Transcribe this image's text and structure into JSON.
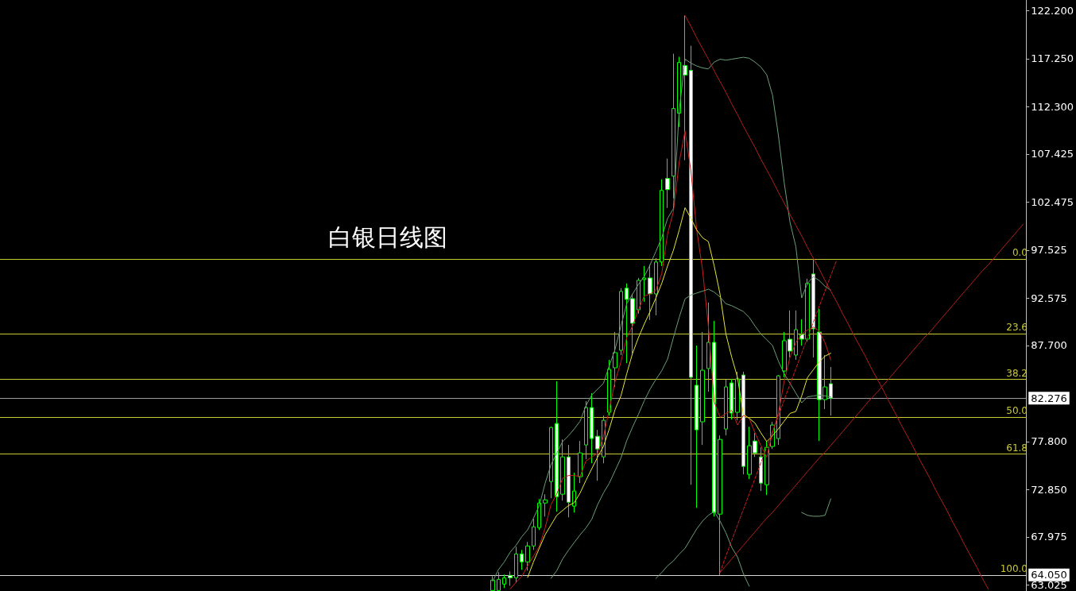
{
  "chart_data": {
    "type": "candlestick",
    "title": "白银日线图",
    "color": "#00ff00",
    "categories": [
      null,
      null,
      null,
      null,
      null,
      null,
      null,
      null,
      null,
      null,
      null,
      null,
      null,
      null,
      null,
      null,
      null,
      null,
      null,
      null,
      null,
      null,
      null,
      null,
      null,
      null,
      null,
      null,
      null,
      null,
      null,
      null,
      null,
      null,
      null,
      null,
      null,
      null,
      null,
      null,
      null,
      null,
      null,
      null,
      null,
      null,
      null,
      null,
      null,
      null,
      null,
      null,
      null,
      null,
      null,
      null,
      null,
      null,
      null,
      null,
      null,
      null,
      null,
      null,
      null,
      null,
      null,
      null,
      null,
      null,
      null,
      null,
      null,
      null,
      null,
      null,
      null,
      null,
      null,
      null,
      null,
      null,
      null,
      null,
      null,
      null,
      null,
      null,
      null,
      null,
      null,
      null,
      null,
      null,
      null,
      null,
      null,
      null,
      null,
      null,
      null,
      null,
      null,
      null,
      null,
      null,
      null,
      null,
      null,
      null,
      null,
      null,
      null,
      null,
      null,
      null,
      null,
      null,
      null,
      null,
      null,
      null,
      null,
      null,
      null,
      null,
      null,
      null,
      null,
      null,
      null,
      null,
      null,
      null,
      null,
      null,
      null,
      null,
      null,
      null,
      null,
      null,
      null,
      null,
      null,
      null,
      null,
      null,
      null,
      null,
      null,
      null,
      null,
      null,
      null,
      null,
      null,
      null,
      null,
      null,
      null,
      null,
      null,
      null,
      null,
      null,
      null,
      null,
      null,
      null,
      null,
      null,
      null,
      null,
      null,
      null
    ],
    "ohlc": [
      null,
      null,
      null,
      null,
      null,
      null,
      null,
      null,
      null,
      null,
      null,
      null,
      null,
      null,
      null,
      null,
      null,
      null,
      null,
      null,
      null,
      null,
      null,
      null,
      null,
      null,
      null,
      null,
      null,
      null,
      null,
      null,
      null,
      null,
      null,
      null,
      null,
      null,
      null,
      null,
      null,
      null,
      null,
      null,
      null,
      null,
      null,
      null,
      null,
      null,
      null,
      null,
      null,
      null,
      null,
      null,
      null,
      null,
      null,
      null,
      null,
      null,
      null,
      null,
      null,
      null,
      null,
      null,
      null,
      null,
      null,
      null,
      null,
      null,
      null,
      null,
      null,
      null,
      null,
      null,
      null,
      null,
      null,
      null,
      [
        62.45,
        63.93,
        62.45,
        63.52
      ],
      [
        62.45,
        64.34,
        62.45,
        63.6
      ],
      [
        63.11,
        64.09,
        62.7,
        63.76
      ],
      [
        64.01,
        64.42,
        62.94,
        63.76
      ],
      [
        63.76,
        66.96,
        63.27,
        66.22
      ],
      [
        66.22,
        66.63,
        64.58,
        65.4
      ],
      [
        65.4,
        67.45,
        64.5,
        67.04
      ],
      [
        67.04,
        69.83,
        66.63,
        69.01
      ],
      [
        68.93,
        71.88,
        68.68,
        71.47
      ],
      [
        71.47,
        72.37,
        70.07,
        71.79
      ],
      [
        73.68,
        79.33,
        71.96,
        79.25
      ],
      [
        79.66,
        84.01,
        70.57,
        72.12
      ],
      [
        72.37,
        78.02,
        71.71,
        76.22
      ],
      [
        76.22,
        77.45,
        69.99,
        71.55
      ],
      [
        71.14,
        74.58,
        70.48,
        72.7
      ],
      [
        74.17,
        77.86,
        73.52,
        76.63
      ],
      [
        77.45,
        81.96,
        75.98,
        81.3
      ],
      [
        81.3,
        82.78,
        75.56,
        78.11
      ],
      [
        78.35,
        79.01,
        73.76,
        77.04
      ],
      [
        76.22,
        80.48,
        75.56,
        79.99
      ],
      [
        80.81,
        86.22,
        80.48,
        85.24
      ],
      [
        85.4,
        89.09,
        83.43,
        86.96
      ],
      [
        87.2,
        93.6,
        86.71,
        93.27
      ],
      [
        93.6,
        94.09,
        85.89,
        92.45
      ],
      [
        92.53,
        93.02,
        86.88,
        89.99
      ],
      [
        91.38,
        94.66,
        90.97,
        94.42
      ],
      [
        94.5,
        95.89,
        92.2,
        94.66
      ],
      [
        94.66,
        96.05,
        90.32,
        93.02
      ],
      [
        93.02,
        96.71,
        90.81,
        96.3
      ],
      [
        96.3,
        104.82,
        95.89,
        103.68
      ],
      [
        104.91,
        106.96,
        101.87,
        103.76
      ],
      [
        105.15,
        117.77,
        102.86,
        112.12
      ],
      [
        111.63,
        117.45,
        110.23,
        116.87
      ],
      [
        116.54,
        121.71,
        106.79,
        115.56
      ],
      [
        116.05,
        118.59,
        73.35,
        84.42
      ],
      [
        83.6,
        87.69,
        70.97,
        79.01
      ],
      [
        79.83,
        89.09,
        77.45,
        85.15
      ],
      [
        85.32,
        92.12,
        82.94,
        88.02
      ],
      [
        88.02,
        90.24,
        70.07,
        70.48
      ],
      [
        70.32,
        78.43,
        64.05,
        78.02
      ],
      [
        79.09,
        84.17,
        78.43,
        83.43
      ],
      [
        83.84,
        84.25,
        80.07,
        80.73
      ],
      [
        80.81,
        84.99,
        79.99,
        84.25
      ],
      [
        84.66,
        84.99,
        74.42,
        75.24
      ],
      [
        74.42,
        79.33,
        73.93,
        77.37
      ],
      [
        77.86,
        78.68,
        76.22,
        76.63
      ],
      [
        76.22,
        77.2,
        72.7,
        73.52
      ],
      [
        73.35,
        77.86,
        72.29,
        77.2
      ],
      [
        77.29,
        79.83,
        77.04,
        79.5
      ],
      [
        78.11,
        84.66,
        77.45,
        84.58
      ],
      [
        85.07,
        89.09,
        84.42,
        88.19
      ],
      [
        88.35,
        91.3,
        86.47,
        87.12
      ],
      [
        86.71,
        91.3,
        86.22,
        89.33
      ],
      [
        88.84,
        90.4,
        87.69,
        88.35
      ],
      [
        88.35,
        94.58,
        88.1,
        94.09
      ],
      [
        95.07,
        96.63,
        86.47,
        89.42
      ],
      [
        89.09,
        91.46,
        77.86,
        82.12
      ],
      [
        82.12,
        86.71,
        81.14,
        83.43
      ],
      [
        83.76,
        85.48,
        80.48,
        82.276
      ],
      null,
      null,
      null,
      null,
      null,
      null,
      null,
      null,
      null,
      null,
      null,
      null,
      null,
      null,
      null,
      null,
      null,
      null,
      null,
      null,
      null,
      null,
      null,
      null,
      null,
      null,
      null,
      null,
      null,
      null,
      null,
      null,
      null
    ],
    "series": [
      {
        "type": "line",
        "color": "#c81e1e",
        "values": [
          null,
          null,
          null,
          null,
          null,
          null,
          null,
          null,
          null,
          null,
          null,
          null,
          null,
          null,
          null,
          null,
          null,
          null,
          null,
          null,
          null,
          null,
          null,
          null,
          null,
          null,
          null,
          null,
          null,
          null,
          null,
          null,
          null,
          null,
          null,
          null,
          null,
          null,
          null,
          null,
          null,
          null,
          null,
          null,
          null,
          null,
          null,
          null,
          null,
          null,
          null,
          null,
          null,
          null,
          null,
          null,
          null,
          null,
          null,
          null,
          null,
          null,
          null,
          null,
          null,
          null,
          null,
          null,
          null,
          null,
          null,
          null,
          null,
          null,
          null,
          null,
          null,
          null,
          null,
          null,
          null,
          null,
          null,
          null,
          null,
          null,
          null,
          62.6,
          63.3,
          63.9,
          65.0,
          66.0,
          67.0,
          68.9,
          71.3,
          72.4,
          74.0,
          74.3,
          74.3,
          74.2,
          75.8,
          76.2,
          76.6,
          78.3,
          81.1,
          84.0,
          86.0,
          88.5,
          89.7,
          91.4,
          92.8,
          93.0,
          93.4,
          95.1,
          99.2,
          101.5,
          106.6,
          109.8,
          105.7,
          99.6,
          95.5,
          89.7,
          81.9,
          80.3,
          80.7,
          81.0,
          79.5,
          80.5,
          80.2,
          78.7,
          77.4,
          76.2,
          78.7,
          80.7,
          84.0,
          86.5,
          88.0,
          88.9,
          89.3,
          89.6,
          89.2,
          88.0,
          86.2,
          null,
          null,
          null,
          null,
          null,
          null,
          null,
          null,
          null,
          null,
          null,
          null,
          null,
          null,
          null,
          null,
          null,
          null,
          null,
          null,
          null,
          null,
          null,
          null,
          null,
          null,
          null,
          null,
          null,
          null,
          null,
          null,
          null
        ]
      },
      {
        "type": "line",
        "color": "#e6e632",
        "values": [
          null,
          null,
          null,
          null,
          null,
          null,
          null,
          null,
          null,
          null,
          null,
          null,
          null,
          null,
          null,
          null,
          null,
          null,
          null,
          null,
          null,
          null,
          null,
          null,
          null,
          null,
          null,
          null,
          null,
          null,
          null,
          null,
          null,
          null,
          null,
          null,
          null,
          null,
          null,
          null,
          null,
          null,
          null,
          null,
          null,
          null,
          null,
          null,
          null,
          null,
          null,
          null,
          null,
          null,
          null,
          null,
          null,
          null,
          null,
          null,
          null,
          null,
          null,
          null,
          null,
          null,
          null,
          null,
          null,
          null,
          null,
          null,
          null,
          null,
          null,
          null,
          null,
          null,
          null,
          null,
          null,
          null,
          null,
          null,
          null,
          null,
          null,
          null,
          null,
          null,
          63.8,
          65.4,
          66.8,
          68.2,
          69.2,
          70.2,
          70.7,
          71.2,
          71.5,
          72.5,
          73.8,
          75.0,
          76.2,
          77.3,
          79.1,
          81.1,
          82.5,
          84.8,
          86.9,
          88.5,
          89.9,
          91.2,
          92.6,
          94.1,
          95.9,
          97.5,
          99.6,
          101.9,
          100.8,
          99.6,
          98.8,
          98.4,
          95.9,
          93.0,
          88.9,
          86.5,
          84.4,
          80.6,
          80.2,
          79.7,
          78.7,
          77.8,
          78.4,
          79.1,
          79.9,
          80.7,
          80.9,
          82.5,
          84.4,
          85.2,
          86.0,
          86.6,
          86.9,
          null,
          null,
          null,
          null,
          null,
          null,
          null,
          null,
          null,
          null,
          null,
          null,
          null,
          null,
          null,
          null,
          null,
          null,
          null,
          null,
          null,
          null,
          null,
          null,
          null,
          null,
          null,
          null,
          null,
          null,
          null,
          null,
          null
        ]
      },
      {
        "type": "line",
        "color": "#6a9f78",
        "values": [
          null,
          null,
          null,
          null,
          null,
          null,
          null,
          null,
          null,
          null,
          null,
          null,
          null,
          null,
          null,
          null,
          null,
          null,
          null,
          null,
          null,
          null,
          null,
          null,
          null,
          null,
          null,
          null,
          null,
          null,
          null,
          null,
          null,
          null,
          null,
          null,
          null,
          null,
          null,
          null,
          null,
          null,
          null,
          null,
          null,
          null,
          null,
          null,
          null,
          null,
          null,
          null,
          null,
          null,
          null,
          null,
          null,
          null,
          null,
          null,
          null,
          null,
          null,
          null,
          null,
          null,
          null,
          null,
          null,
          null,
          null,
          null,
          null,
          null,
          null,
          null,
          null,
          null,
          null,
          null,
          null,
          null,
          null,
          null,
          63.4,
          64.6,
          65.4,
          66.4,
          67.1,
          68.0,
          68.7,
          69.9,
          71.2,
          73.5,
          75.4,
          76.6,
          77.8,
          78.4,
          79.1,
          79.9,
          81.5,
          82.6,
          83.2,
          83.8,
          85.6,
          87.3,
          89.7,
          92.0,
          93.0,
          94.0,
          94.8,
          96.0,
          97.4,
          98.8,
          100.8,
          101.8,
          111.9,
          117.2,
          116.8,
          116.5,
          116.3,
          116.2,
          116.9,
          117.2,
          117.1,
          117.2,
          117.3,
          117.4,
          117.3,
          116.9,
          116.4,
          115.6,
          113.5,
          109.4,
          104.5,
          100.4,
          97.9,
          92.6,
          94.1,
          94.8,
          94.4,
          93.8,
          93.4,
          null,
          null,
          null,
          null,
          null,
          null,
          null,
          null,
          null,
          null,
          null,
          null,
          null,
          null,
          null,
          null,
          null,
          null,
          null,
          null,
          null,
          null,
          null,
          null,
          null,
          null,
          null,
          null,
          null,
          null,
          null,
          null,
          null
        ]
      },
      {
        "type": "line",
        "color": "#6a9f78",
        "values": [
          null,
          null,
          null,
          null,
          null,
          null,
          null,
          null,
          null,
          null,
          null,
          null,
          null,
          null,
          null,
          null,
          null,
          null,
          null,
          null,
          null,
          null,
          null,
          null,
          null,
          null,
          null,
          null,
          null,
          null,
          null,
          null,
          null,
          null,
          null,
          null,
          null,
          null,
          null,
          null,
          null,
          null,
          null,
          null,
          null,
          null,
          null,
          null,
          null,
          null,
          null,
          null,
          null,
          null,
          null,
          null,
          null,
          null,
          null,
          null,
          null,
          null,
          null,
          null,
          null,
          null,
          null,
          null,
          null,
          null,
          null,
          null,
          null,
          null,
          null,
          null,
          null,
          null,
          null,
          null,
          null,
          null,
          null,
          null,
          null,
          null,
          null,
          null,
          null,
          null,
          null,
          null,
          null,
          null,
          63.7,
          64.5,
          65.7,
          66.6,
          67.4,
          68.2,
          68.9,
          69.8,
          71.3,
          72.5,
          73.5,
          74.8,
          76.1,
          77.9,
          79.3,
          80.6,
          82.0,
          83.2,
          84.2,
          85.1,
          86.3,
          88.5,
          90.6,
          92.5,
          92.9,
          93.1,
          93.3,
          93.5,
          93.2,
          92.7,
          92.0,
          91.8,
          91.5,
          91.2,
          90.6,
          89.7,
          88.9,
          88.3,
          87.7,
          86.1,
          84.8,
          83.8,
          82.8,
          81.8,
          82.4,
          82.5,
          82.6,
          82.5,
          82.4,
          null,
          null,
          null,
          null,
          null,
          null,
          null,
          null,
          null,
          null,
          null,
          null,
          null,
          null,
          null,
          null,
          null,
          null,
          null,
          null,
          null,
          null,
          null,
          null,
          null,
          null,
          null,
          null,
          null,
          null,
          null,
          null,
          null
        ]
      },
      {
        "type": "line",
        "color": "#6a9f78",
        "values": [
          null,
          null,
          null,
          null,
          null,
          null,
          null,
          null,
          null,
          null,
          null,
          null,
          null,
          null,
          null,
          null,
          null,
          null,
          null,
          null,
          null,
          null,
          null,
          null,
          null,
          null,
          null,
          null,
          null,
          null,
          null,
          null,
          null,
          null,
          null,
          null,
          null,
          null,
          null,
          null,
          null,
          null,
          null,
          null,
          null,
          null,
          null,
          null,
          null,
          null,
          null,
          null,
          null,
          null,
          null,
          null,
          null,
          null,
          null,
          null,
          null,
          null,
          null,
          null,
          null,
          null,
          null,
          null,
          null,
          null,
          null,
          null,
          null,
          null,
          null,
          null,
          null,
          null,
          null,
          null,
          null,
          null,
          null,
          null,
          null,
          null,
          null,
          null,
          null,
          null,
          null,
          null,
          null,
          null,
          null,
          null,
          null,
          null,
          null,
          null,
          null,
          null,
          null,
          null,
          null,
          null,
          null,
          null,
          null,
          null,
          null,
          null,
          63.7,
          64.3,
          65.0,
          65.5,
          66.2,
          66.8,
          67.8,
          68.8,
          69.6,
          70.2,
          70.6,
          69.6,
          68.4,
          66.9,
          65.9,
          64.2,
          62.9,
          null,
          null,
          null,
          null,
          null,
          null,
          null,
          null,
          70.5,
          70.2,
          70.1,
          70.1,
          70.2,
          71.9,
          null,
          null,
          null,
          null,
          null,
          null,
          null,
          null,
          null,
          null,
          null,
          null,
          null,
          null,
          null,
          null,
          null,
          null,
          null,
          null,
          null,
          null,
          null,
          null,
          null,
          null,
          null,
          null,
          null,
          null,
          null,
          null,
          null
        ]
      },
      {
        "type": "line",
        "color": "#b41e1e",
        "values": [
          null,
          null,
          null,
          null,
          null,
          null,
          null,
          null,
          null,
          null,
          null,
          null,
          null,
          null,
          null,
          null,
          null,
          null,
          null,
          null,
          null,
          null,
          null,
          null,
          null,
          null,
          null,
          null,
          null,
          null,
          null,
          null,
          null,
          null,
          null,
          null,
          null,
          null,
          null,
          null,
          null,
          null,
          null,
          null,
          null,
          null,
          null,
          null,
          null,
          null,
          null,
          null,
          null,
          null,
          null,
          null,
          null,
          null,
          null,
          null,
          null,
          null,
          null,
          null,
          null,
          null,
          null,
          null,
          null,
          null,
          null,
          null,
          null,
          null,
          null,
          null,
          null,
          null,
          null,
          null,
          null,
          null,
          null,
          null,
          null,
          null,
          null,
          null,
          null,
          null,
          null,
          null,
          null,
          null,
          null,
          null,
          null,
          null,
          null,
          null,
          null,
          null,
          null,
          null,
          null,
          null,
          null,
          null,
          null,
          null,
          null,
          null,
          null,
          null,
          null,
          null,
          null,
          121.7,
          120.6,
          119.4,
          118.3,
          117.2,
          116.0,
          114.9,
          113.8,
          112.6,
          111.5,
          110.3,
          109.2,
          108.1,
          106.9,
          105.8,
          104.7,
          103.5,
          102.4,
          101.2,
          100.1,
          99.0,
          97.8,
          96.7,
          95.6,
          94.4,
          93.3,
          92.2,
          91.0,
          89.9,
          88.7,
          87.6,
          86.5,
          85.3,
          84.2,
          83.1,
          81.9,
          80.8,
          79.6,
          78.5,
          77.4,
          76.2,
          75.1,
          74.0,
          72.8,
          71.7,
          70.6,
          69.4,
          68.3,
          67.1,
          66.0,
          64.9,
          63.7,
          62.6,
          null,
          null,
          null,
          null,
          null,
          null
        ]
      },
      {
        "type": "line",
        "color": "#b41e1e",
        "values": [
          null,
          null,
          null,
          null,
          null,
          null,
          null,
          null,
          null,
          null,
          null,
          null,
          null,
          null,
          null,
          null,
          null,
          null,
          null,
          null,
          null,
          null,
          null,
          null,
          null,
          null,
          null,
          null,
          null,
          null,
          null,
          null,
          null,
          null,
          null,
          null,
          null,
          null,
          null,
          null,
          null,
          null,
          null,
          null,
          null,
          null,
          null,
          null,
          null,
          null,
          null,
          null,
          null,
          null,
          null,
          null,
          null,
          null,
          null,
          null,
          null,
          null,
          null,
          null,
          null,
          null,
          null,
          null,
          null,
          null,
          null,
          null,
          null,
          null,
          null,
          null,
          null,
          null,
          null,
          null,
          null,
          null,
          null,
          null,
          null,
          null,
          null,
          null,
          null,
          null,
          null,
          null,
          null,
          null,
          null,
          null,
          null,
          null,
          null,
          null,
          null,
          null,
          null,
          null,
          null,
          null,
          null,
          null,
          null,
          null,
          null,
          null,
          null,
          null,
          null,
          null,
          null,
          null,
          null,
          null,
          null,
          null,
          null,
          64.3,
          65.0,
          65.7,
          66.4,
          67.1,
          67.8,
          68.5,
          69.2,
          69.9,
          70.5,
          71.2,
          71.9,
          72.6,
          73.3,
          74.0,
          74.7,
          75.4,
          76.1,
          76.7,
          77.4,
          78.1,
          78.8,
          79.5,
          80.2,
          80.9,
          81.6,
          82.3,
          82.9,
          83.6,
          84.3,
          85.0,
          85.7,
          86.4,
          87.1,
          87.8,
          88.5,
          89.1,
          89.8,
          90.5,
          91.2,
          91.9,
          92.6,
          93.3,
          94.0,
          94.7,
          95.4,
          96.0,
          96.7,
          97.4,
          98.1,
          98.8,
          99.5,
          100.2
        ]
      },
      {
        "type": "line",
        "color": "#c81e1e",
        "line_style": "dashed",
        "values": [
          null,
          null,
          null,
          null,
          null,
          null,
          null,
          null,
          null,
          null,
          null,
          null,
          null,
          null,
          null,
          null,
          null,
          null,
          null,
          null,
          null,
          null,
          null,
          null,
          null,
          null,
          null,
          null,
          null,
          null,
          null,
          null,
          null,
          null,
          null,
          null,
          null,
          null,
          null,
          null,
          null,
          null,
          null,
          null,
          null,
          null,
          null,
          null,
          null,
          null,
          null,
          null,
          null,
          null,
          null,
          null,
          null,
          null,
          null,
          null,
          null,
          null,
          null,
          null,
          null,
          null,
          null,
          null,
          null,
          null,
          null,
          null,
          null,
          null,
          null,
          null,
          null,
          null,
          null,
          null,
          null,
          null,
          null,
          null,
          null,
          null,
          null,
          null,
          null,
          null,
          null,
          null,
          null,
          null,
          null,
          null,
          null,
          null,
          null,
          null,
          null,
          null,
          null,
          null,
          null,
          null,
          null,
          null,
          null,
          null,
          null,
          null,
          null,
          null,
          null,
          null,
          null,
          null,
          null,
          null,
          null,
          null,
          null,
          64.3,
          66.0,
          67.6,
          69.2,
          70.8,
          72.4,
          74.0,
          75.6,
          77.2,
          78.8,
          80.4,
          82.1,
          83.7,
          85.3,
          86.9,
          88.5,
          90.1,
          91.7,
          93.3,
          94.9,
          96.5,
          null,
          null,
          null,
          null,
          null,
          null,
          null,
          null,
          null,
          null,
          null,
          null,
          null,
          null,
          null,
          null,
          null,
          null,
          null,
          null,
          null,
          null,
          null,
          null,
          null,
          null,
          null,
          null,
          null,
          null,
          null,
          null
        ]
      }
    ],
    "ylim": [
      62.4,
      123.3
    ],
    "yticks": [
      63.025,
      67.975,
      {
        "value": 72.85,
        "label": "72.850"
      },
      {
        "value": 77.8,
        "label": "77.800"
      },
      {
        "value": 87.7,
        "label": "87.700"
      },
      92.575,
      97.525,
      102.475,
      107.425,
      {
        "value": 112.3,
        "label": "112.300"
      },
      {
        "value": 117.25,
        "label": "117.250"
      },
      {
        "value": 122.2,
        "label": "122.200"
      }
    ],
    "tick_labels": "y",
    "ref_lines": [
      {
        "axis": "y",
        "value": 82.276,
        "label": "82.276",
        "color": "#9a9a9a"
      },
      {
        "axis": "y",
        "value": 64.05,
        "label": "64.050",
        "color": "#d8d8d8"
      },
      {
        "axis": "y",
        "value": 96.6,
        "color": "#c8c832"
      },
      {
        "axis": "y",
        "value": 88.9,
        "color": "#c8c832"
      },
      {
        "axis": "y",
        "value": 84.2,
        "color": "#c8c832"
      },
      {
        "axis": "y",
        "value": 80.3,
        "color": "#c8c832"
      },
      {
        "axis": "y",
        "value": 76.5,
        "color": "#c8c832"
      }
    ],
    "annotations": [
      {
        "text": "0.0",
        "y": 96.6
      },
      {
        "text": "23.6",
        "y": 88.9
      },
      {
        "text": "38.2",
        "y": 84.2
      },
      {
        "text": "50.0",
        "y": 80.3
      },
      {
        "text": "61.8",
        "y": 76.5
      },
      {
        "text": "100.0",
        "y": 64.05
      }
    ]
  }
}
